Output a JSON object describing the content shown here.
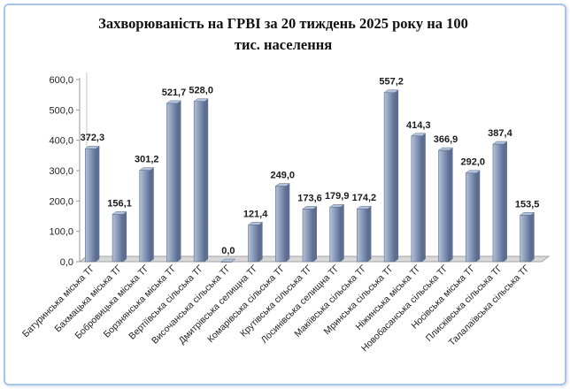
{
  "chart_data": {
    "type": "bar",
    "title": "Захворюваність  на ГРВІ за 20 тиждень 2025 року на 100\nтис. населення",
    "categories": [
      "Батуринська міська ТГ",
      "Бахмацька міська ТГ",
      "Бобровицька міська ТГ",
      "Борзнянська міська ТГ",
      "Вертіївська сільська ТГ",
      "Височанська сільська ТГ",
      "Дмитрівська селищна ТГ",
      "Комарівська сільська ТГ",
      "Крутівська сільська ТГ",
      "Лосинівська селищна ТГ",
      "Макіївська сільська ТГ",
      "Мринська сільська ТГ",
      "Ніжинська міська ТГ",
      "Новобасанська сільська ТГ",
      "Носівська міська ТГ",
      "Плисківська сільська ТГ",
      "Талалаївська сільська ТГ"
    ],
    "values": [
      372.3,
      156.1,
      301.2,
      521.7,
      528.0,
      0.0,
      121.4,
      249.0,
      173.6,
      179.9,
      174.2,
      557.2,
      414.3,
      366.9,
      292.0,
      387.4,
      153.5
    ],
    "value_labels": [
      "372,3",
      "156,1",
      "301,2",
      "521,7",
      "528,0",
      "0,0",
      "121,4",
      "249,0",
      "173,6",
      "179,9",
      "174,2",
      "557,2",
      "414,3",
      "366,9",
      "292,0",
      "387,4",
      "153,5"
    ],
    "yticks": [
      "0,0",
      "100,0",
      "200,0",
      "300,0",
      "400,0",
      "500,0",
      "600,0"
    ],
    "ylim": [
      0,
      600
    ],
    "xlabel": "",
    "ylabel": "",
    "grid": false,
    "legend": "none",
    "bar_color": "#8395b5",
    "bar_edge_color": "#5d6e90",
    "bar_light_color": "#b4c2d9",
    "floor_color": "#a3a3a3"
  }
}
